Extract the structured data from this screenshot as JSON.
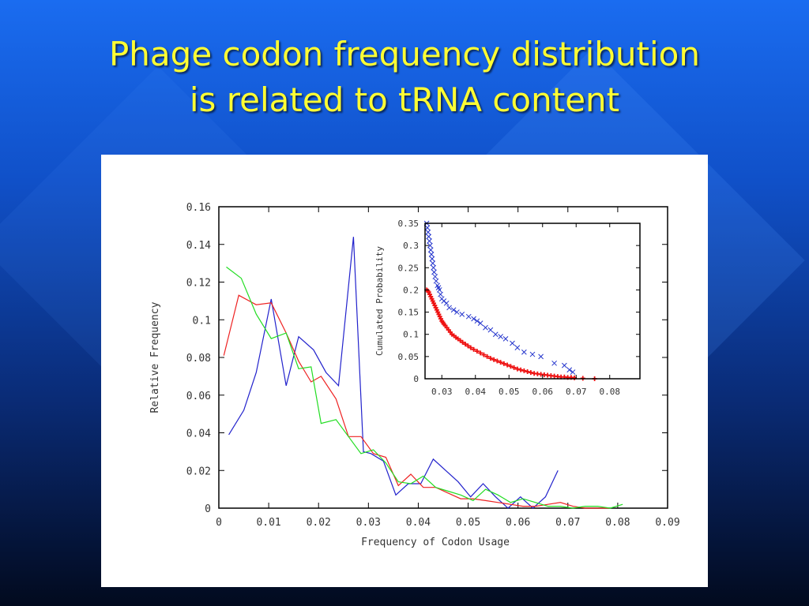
{
  "slide": {
    "title_line1": "Phage codon frequency distribution",
    "title_line2": "is related to tRNA content"
  },
  "chart_data": [
    {
      "type": "line",
      "title": "",
      "xlabel": "Frequency of Codon Usage",
      "ylabel": "Relative Frequency",
      "xlim": [
        0,
        0.09
      ],
      "ylim": [
        0,
        0.16
      ],
      "xticks": [
        "0",
        "0.01",
        "0.02",
        "0.03",
        "0.04",
        "0.05",
        "0.06",
        "0.07",
        "0.08",
        "0.09"
      ],
      "yticks": [
        "0",
        "0.02",
        "0.04",
        "0.06",
        "0.08",
        "0.1",
        "0.12",
        "0.14",
        "0.16"
      ],
      "grid": false,
      "series": [
        {
          "color": "#2222cc",
          "x": [
            0.002,
            0.005,
            0.0075,
            0.0105,
            0.0135,
            0.016,
            0.019,
            0.0215,
            0.024,
            0.027,
            0.029,
            0.0305,
            0.033,
            0.0355,
            0.038,
            0.0405,
            0.043,
            0.0455,
            0.048,
            0.0505,
            0.053,
            0.0555,
            0.058,
            0.0605,
            0.063,
            0.0655,
            0.068
          ],
          "y": [
            0.039,
            0.052,
            0.072,
            0.111,
            0.065,
            0.091,
            0.084,
            0.072,
            0.065,
            0.144,
            0.03,
            0.029,
            0.025,
            0.007,
            0.013,
            0.013,
            0.026,
            0.02,
            0.014,
            0.006,
            0.013,
            0.006,
            0.0,
            0.006,
            0.0,
            0.006,
            0.02
          ]
        },
        {
          "color": "#ee2222",
          "x": [
            0.001,
            0.004,
            0.0075,
            0.0105,
            0.0135,
            0.016,
            0.0185,
            0.0205,
            0.0235,
            0.026,
            0.0285,
            0.031,
            0.0335,
            0.036,
            0.0385,
            0.041,
            0.0435,
            0.046,
            0.0485,
            0.051,
            0.0535,
            0.056,
            0.0585,
            0.061,
            0.0635,
            0.066,
            0.0685,
            0.071,
            0.0735,
            0.076,
            0.0785
          ],
          "y": [
            0.081,
            0.113,
            0.108,
            0.109,
            0.093,
            0.078,
            0.067,
            0.07,
            0.058,
            0.038,
            0.038,
            0.029,
            0.027,
            0.012,
            0.018,
            0.011,
            0.011,
            0.008,
            0.005,
            0.005,
            0.004,
            0.003,
            0.002,
            0.001,
            0.001,
            0.002,
            0.003,
            0.001,
            0.0,
            0.0,
            0.0
          ]
        },
        {
          "color": "#22dd22",
          "x": [
            0.0015,
            0.0045,
            0.0075,
            0.0105,
            0.0135,
            0.016,
            0.0185,
            0.0205,
            0.0235,
            0.026,
            0.0285,
            0.031,
            0.0335,
            0.036,
            0.0385,
            0.041,
            0.0435,
            0.046,
            0.0485,
            0.051,
            0.0535,
            0.056,
            0.0585,
            0.061,
            0.0635,
            0.066,
            0.0685,
            0.071,
            0.0735,
            0.076,
            0.0785,
            0.081
          ],
          "y": [
            0.128,
            0.122,
            0.103,
            0.09,
            0.093,
            0.074,
            0.075,
            0.045,
            0.047,
            0.038,
            0.029,
            0.031,
            0.024,
            0.014,
            0.013,
            0.017,
            0.011,
            0.009,
            0.007,
            0.004,
            0.01,
            0.007,
            0.003,
            0.005,
            0.003,
            0.001,
            0.001,
            0.0,
            0.001,
            0.001,
            0.0,
            0.002
          ]
        }
      ]
    },
    {
      "type": "scatter",
      "title": "",
      "xlabel": "",
      "ylabel": "Cumulated Probability",
      "xlim": [
        0.025,
        0.089
      ],
      "ylim": [
        0,
        0.35
      ],
      "xticks": [
        "0.03",
        "0.04",
        "0.05",
        "0.06",
        "0.07",
        "0.08"
      ],
      "xtick_values": [
        0.03,
        0.04,
        0.05,
        0.06,
        0.07,
        0.08
      ],
      "yticks": [
        "0",
        "0.05",
        "0.1",
        "0.15",
        "0.2",
        "0.25",
        "0.3",
        "0.35"
      ],
      "grid": false,
      "series": [
        {
          "color": "#2233cc",
          "marker": "x",
          "x": [
            0.0255,
            0.0257,
            0.0259,
            0.0261,
            0.0263,
            0.0265,
            0.0267,
            0.0269,
            0.0271,
            0.0273,
            0.0275,
            0.0277,
            0.028,
            0.0283,
            0.0287,
            0.029,
            0.0293,
            0.0296,
            0.03,
            0.0306,
            0.0314,
            0.0322,
            0.0335,
            0.0345,
            0.036,
            0.038,
            0.0395,
            0.0405,
            0.0415,
            0.043,
            0.0445,
            0.046,
            0.0475,
            0.049,
            0.051,
            0.0525,
            0.0545,
            0.057,
            0.0595,
            0.0635,
            0.0665,
            0.068,
            0.069
          ],
          "y": [
            0.35,
            0.34,
            0.33,
            0.32,
            0.31,
            0.3,
            0.29,
            0.28,
            0.27,
            0.26,
            0.25,
            0.24,
            0.23,
            0.22,
            0.21,
            0.205,
            0.2,
            0.19,
            0.18,
            0.175,
            0.17,
            0.16,
            0.155,
            0.15,
            0.145,
            0.14,
            0.135,
            0.13,
            0.125,
            0.115,
            0.11,
            0.1,
            0.095,
            0.09,
            0.08,
            0.07,
            0.06,
            0.055,
            0.05,
            0.035,
            0.03,
            0.02,
            0.015
          ]
        },
        {
          "color": "#ee1111",
          "marker": "+",
          "x": [
            0.0255,
            0.0258,
            0.0261,
            0.0264,
            0.0267,
            0.027,
            0.0273,
            0.0276,
            0.0279,
            0.0282,
            0.0285,
            0.0288,
            0.0291,
            0.0294,
            0.0297,
            0.03,
            0.0303,
            0.0306,
            0.031,
            0.0315,
            0.032,
            0.0325,
            0.033,
            0.0336,
            0.0342,
            0.0348,
            0.0355,
            0.0362,
            0.037,
            0.0378,
            0.0386,
            0.0395,
            0.0405,
            0.0415,
            0.0425,
            0.0435,
            0.0445,
            0.0455,
            0.0465,
            0.0475,
            0.0485,
            0.0495,
            0.0505,
            0.0515,
            0.0525,
            0.0535,
            0.0545,
            0.0555,
            0.0565,
            0.0575,
            0.0585,
            0.0595,
            0.0605,
            0.0615,
            0.0625,
            0.0635,
            0.0645,
            0.0655,
            0.0665,
            0.0675,
            0.0685,
            0.0695,
            0.072,
            0.0755
          ],
          "y": [
            0.2,
            0.198,
            0.195,
            0.19,
            0.185,
            0.18,
            0.175,
            0.17,
            0.165,
            0.16,
            0.155,
            0.15,
            0.145,
            0.14,
            0.135,
            0.13,
            0.127,
            0.123,
            0.12,
            0.115,
            0.11,
            0.105,
            0.1,
            0.097,
            0.093,
            0.09,
            0.086,
            0.082,
            0.078,
            0.074,
            0.07,
            0.066,
            0.062,
            0.058,
            0.054,
            0.05,
            0.046,
            0.043,
            0.04,
            0.037,
            0.034,
            0.031,
            0.028,
            0.025,
            0.022,
            0.02,
            0.018,
            0.016,
            0.014,
            0.012,
            0.011,
            0.01,
            0.009,
            0.008,
            0.007,
            0.006,
            0.005,
            0.004,
            0.004,
            0.003,
            0.003,
            0.002,
            0.001,
            0.0
          ]
        }
      ]
    }
  ]
}
